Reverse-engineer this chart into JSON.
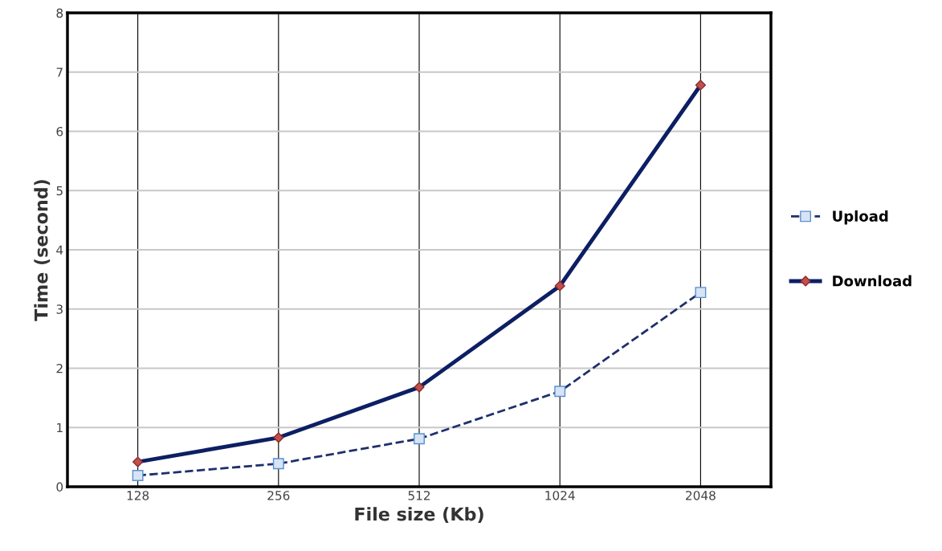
{
  "chart_data": {
    "type": "line",
    "xlabel": "File size (Kb)",
    "ylabel": "Time (second)",
    "categories": [
      "128",
      "256",
      "512",
      "1024",
      "2048"
    ],
    "series": [
      {
        "name": "Upload",
        "color": "#1f2f6b",
        "values": [
          0.19,
          0.39,
          0.81,
          1.61,
          3.28
        ],
        "marker": "square",
        "line_style": "dashed"
      },
      {
        "name": "Download",
        "color": "#0d1f63",
        "values": [
          0.42,
          0.83,
          1.68,
          3.39,
          6.78
        ],
        "marker": "diamond",
        "line_style": "solid"
      }
    ],
    "ylim": [
      0,
      8
    ],
    "yticks": [
      0,
      1,
      2,
      3,
      4,
      5,
      6,
      7,
      8
    ],
    "grid": true,
    "legend": "right"
  }
}
